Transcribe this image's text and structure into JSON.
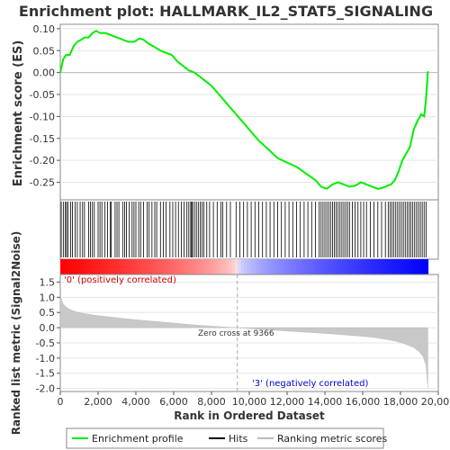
{
  "chart_data": {
    "type": "line",
    "title": "Enrichment plot: HALLMARK_IL2_STAT5_SIGNALING",
    "xlabel": "Rank in Ordered Dataset",
    "es_panel": {
      "ylabel": "Enrichment score (ES)",
      "ylim": [
        -0.29,
        0.11
      ],
      "yticks": [
        "0.10",
        "0.05",
        "0.00",
        "-0.05",
        "-0.10",
        "-0.15",
        "-0.20",
        "-0.25"
      ],
      "series_color": "#00ee00",
      "x": [
        0,
        150,
        300,
        500,
        700,
        900,
        1100,
        1300,
        1500,
        1700,
        1900,
        2100,
        2400,
        2700,
        3000,
        3300,
        3600,
        3900,
        4200,
        4400,
        4700,
        5000,
        5300,
        5600,
        5900,
        6200,
        6500,
        6800,
        7100,
        7400,
        7700,
        8000,
        8400,
        8800,
        9200,
        9600,
        10000,
        10500,
        11000,
        11500,
        12000,
        12500,
        13000,
        13500,
        13800,
        14100,
        14400,
        14700,
        15000,
        15300,
        15600,
        15900,
        16200,
        16500,
        16800,
        17100,
        17300,
        17500,
        17700,
        17900,
        18100,
        18300,
        18500,
        18700,
        18900,
        19100,
        19250,
        19350,
        19450
      ],
      "y": [
        0.0,
        0.03,
        0.04,
        0.04,
        0.06,
        0.07,
        0.075,
        0.08,
        0.08,
        0.09,
        0.095,
        0.09,
        0.09,
        0.085,
        0.08,
        0.075,
        0.07,
        0.07,
        0.078,
        0.075,
        0.065,
        0.058,
        0.05,
        0.045,
        0.04,
        0.025,
        0.015,
        0.005,
        0.0,
        -0.01,
        -0.02,
        -0.03,
        -0.05,
        -0.07,
        -0.09,
        -0.11,
        -0.13,
        -0.155,
        -0.175,
        -0.195,
        -0.205,
        -0.215,
        -0.23,
        -0.245,
        -0.26,
        -0.265,
        -0.255,
        -0.25,
        -0.255,
        -0.26,
        -0.258,
        -0.25,
        -0.255,
        -0.26,
        -0.265,
        -0.262,
        -0.258,
        -0.255,
        -0.245,
        -0.225,
        -0.2,
        -0.185,
        -0.17,
        -0.13,
        -0.11,
        -0.095,
        -0.1,
        -0.06,
        0.003
      ]
    },
    "hits_panel": {
      "hit_ranks": [
        50,
        160,
        270,
        330,
        400,
        550,
        640,
        780,
        900,
        1050,
        1180,
        1280,
        1500,
        1600,
        1700,
        1800,
        2000,
        2100,
        2200,
        2350,
        2500,
        2650,
        2700,
        2900,
        3000,
        3100,
        3300,
        3400,
        3500,
        3650,
        3800,
        3900,
        4000,
        4150,
        4250,
        4400,
        4600,
        4700,
        4850,
        5000,
        5100,
        5300,
        5450,
        5600,
        5800,
        5950,
        6100,
        6250,
        6400,
        6550,
        6700,
        6800,
        6900,
        6950,
        7000,
        7100,
        7200,
        7300,
        7400,
        7500,
        7600,
        7750,
        7900,
        8100,
        8300,
        8500,
        8600,
        8800,
        9000,
        9300,
        9500,
        9700,
        9900,
        10100,
        10300,
        10500,
        10700,
        10900,
        11100,
        11300,
        11500,
        11700,
        11900,
        12100,
        12300,
        12500,
        12700,
        12900,
        13100,
        13300,
        13500,
        13700,
        13800,
        13900,
        14000,
        14100,
        14200,
        14300,
        14400,
        14500,
        14600,
        14700,
        14800,
        14900,
        15000,
        15100,
        15200,
        15300,
        15450,
        15600,
        15750,
        15900,
        16050,
        16200,
        16400,
        16600,
        16800,
        17000,
        17200,
        17350,
        17450,
        17550,
        17650,
        17750,
        17850,
        17950,
        18050,
        18150,
        18250,
        18350,
        18450,
        18550,
        18650,
        18750,
        18850,
        18950,
        19050,
        19150,
        19250,
        19350
      ]
    },
    "metric_panel": {
      "ylabel": "Ranked list metric (Signal2Noise)",
      "ylim": [
        -2.1,
        1.75
      ],
      "yticks": [
        "1.5",
        "1.0",
        "0.5",
        "0.0",
        "-0.5",
        "-1.0",
        "-1.5",
        "-2.0"
      ],
      "x": [
        0,
        50,
        150,
        300,
        500,
        800,
        1200,
        1800,
        2500,
        3500,
        4500,
        5500,
        6500,
        7500,
        8500,
        9366,
        10500,
        11500,
        12500,
        13500,
        14500,
        15500,
        16500,
        17200,
        17800,
        18300,
        18700,
        19000,
        19200,
        19350,
        19450
      ],
      "y": [
        1.05,
        0.95,
        0.78,
        0.68,
        0.6,
        0.53,
        0.47,
        0.41,
        0.36,
        0.29,
        0.23,
        0.18,
        0.12,
        0.07,
        0.03,
        0.0,
        -0.05,
        -0.09,
        -0.13,
        -0.17,
        -0.21,
        -0.26,
        -0.31,
        -0.38,
        -0.45,
        -0.55,
        -0.65,
        -0.8,
        -0.95,
        -1.25,
        -1.97
      ],
      "zero_cross_label": "Zero cross at 9366",
      "pos_label": "'0' (positively correlated)",
      "neg_label": "'3' (negatively correlated)",
      "pos_color": "#ff0000",
      "neg_color": "#0000ff"
    },
    "xlim": [
      0,
      20000
    ],
    "xticks": [
      0,
      2000,
      4000,
      6000,
      8000,
      10000,
      12000,
      14000,
      16000,
      18000,
      20000
    ],
    "xtick_labels": [
      "0",
      "2,000",
      "4,000",
      "6,000",
      "8,000",
      "10,000",
      "12,000",
      "14,000",
      "16,000",
      "18,000",
      "20,000"
    ],
    "zero_cross": 9366,
    "n_genes": 19450,
    "legend": [
      {
        "label": "Enrichment profile",
        "color": "#00ee00"
      },
      {
        "label": "Hits",
        "color": "#000000"
      },
      {
        "label": "Ranking metric scores",
        "color": "#bbbbbb"
      }
    ],
    "legend_placement": "bottom"
  }
}
